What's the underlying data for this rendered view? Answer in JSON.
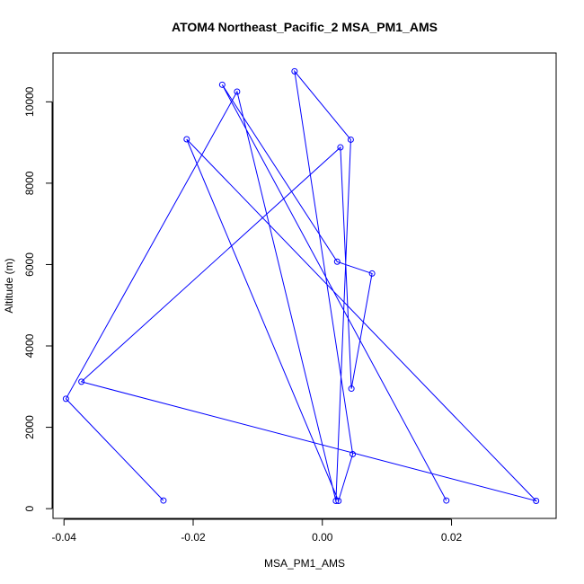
{
  "chart_data": {
    "type": "line",
    "title": "ATOM4 Northeast_Pacific_2 MSA_PM1_AMS",
    "xlabel": "MSA_PM1_AMS",
    "ylabel": "Altitude (m)",
    "xlim": [
      -0.0417,
      0.0362
    ],
    "ylim": [
      -240,
      11200
    ],
    "x_ticks": [
      -0.04,
      -0.02,
      0.0,
      0.02
    ],
    "x_tick_labels": [
      "-0.04",
      "-0.02",
      "0.00",
      "0.02"
    ],
    "y_ticks": [
      0,
      2000,
      4000,
      6000,
      8000,
      10000
    ],
    "y_tick_labels": [
      "0",
      "2000",
      "4000",
      "6000",
      "8000",
      "10000"
    ],
    "grid": false,
    "legend": "none",
    "series": [
      {
        "color": "#0000ff",
        "marker": "open-circle",
        "x": [
          0.0192,
          -0.0155,
          0.0023,
          0.0077,
          0.0045,
          0.0028,
          -0.0373,
          0.0331,
          -0.021,
          0.0025,
          0.0047,
          -0.0043,
          0.0044,
          0.0021,
          -0.0132,
          -0.0397,
          -0.0246
        ],
        "y": [
          200,
          10420,
          6070,
          5780,
          2950,
          8880,
          3120,
          190,
          9080,
          190,
          1340,
          10750,
          9070,
          190,
          10250,
          2700,
          200
        ]
      }
    ]
  }
}
